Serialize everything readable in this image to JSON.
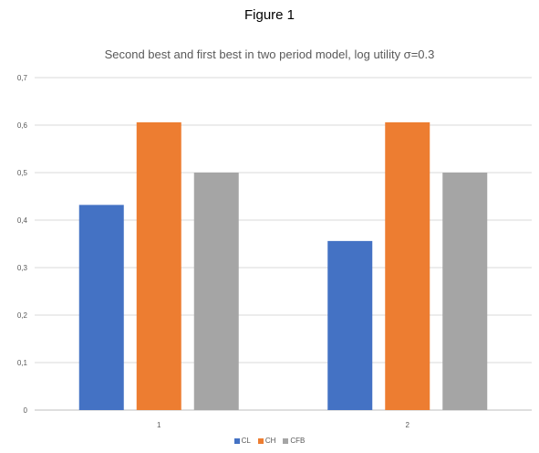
{
  "figure_caption": "Figure 1",
  "chart_data": {
    "type": "bar",
    "title": "Second best and first best in two period model, log utility σ=0.3",
    "categories": [
      "1",
      "2"
    ],
    "series": [
      {
        "name": "CL",
        "values": [
          0.432,
          0.356
        ],
        "color": "#4472C4"
      },
      {
        "name": "CH",
        "values": [
          0.606,
          0.606
        ],
        "color": "#ED7D31"
      },
      {
        "name": "CFB",
        "values": [
          0.5,
          0.5
        ],
        "color": "#A5A5A5"
      }
    ],
    "xlabel": "",
    "ylabel": "",
    "ylim": [
      0,
      0.7
    ],
    "yticks": [
      "0",
      "0,1",
      "0,2",
      "0,3",
      "0,4",
      "0,5",
      "0,6",
      "0,7"
    ],
    "ytick_values": [
      0,
      0.1,
      0.2,
      0.3,
      0.4,
      0.5,
      0.6,
      0.7
    ],
    "grid": true,
    "legend_position": "bottom"
  }
}
